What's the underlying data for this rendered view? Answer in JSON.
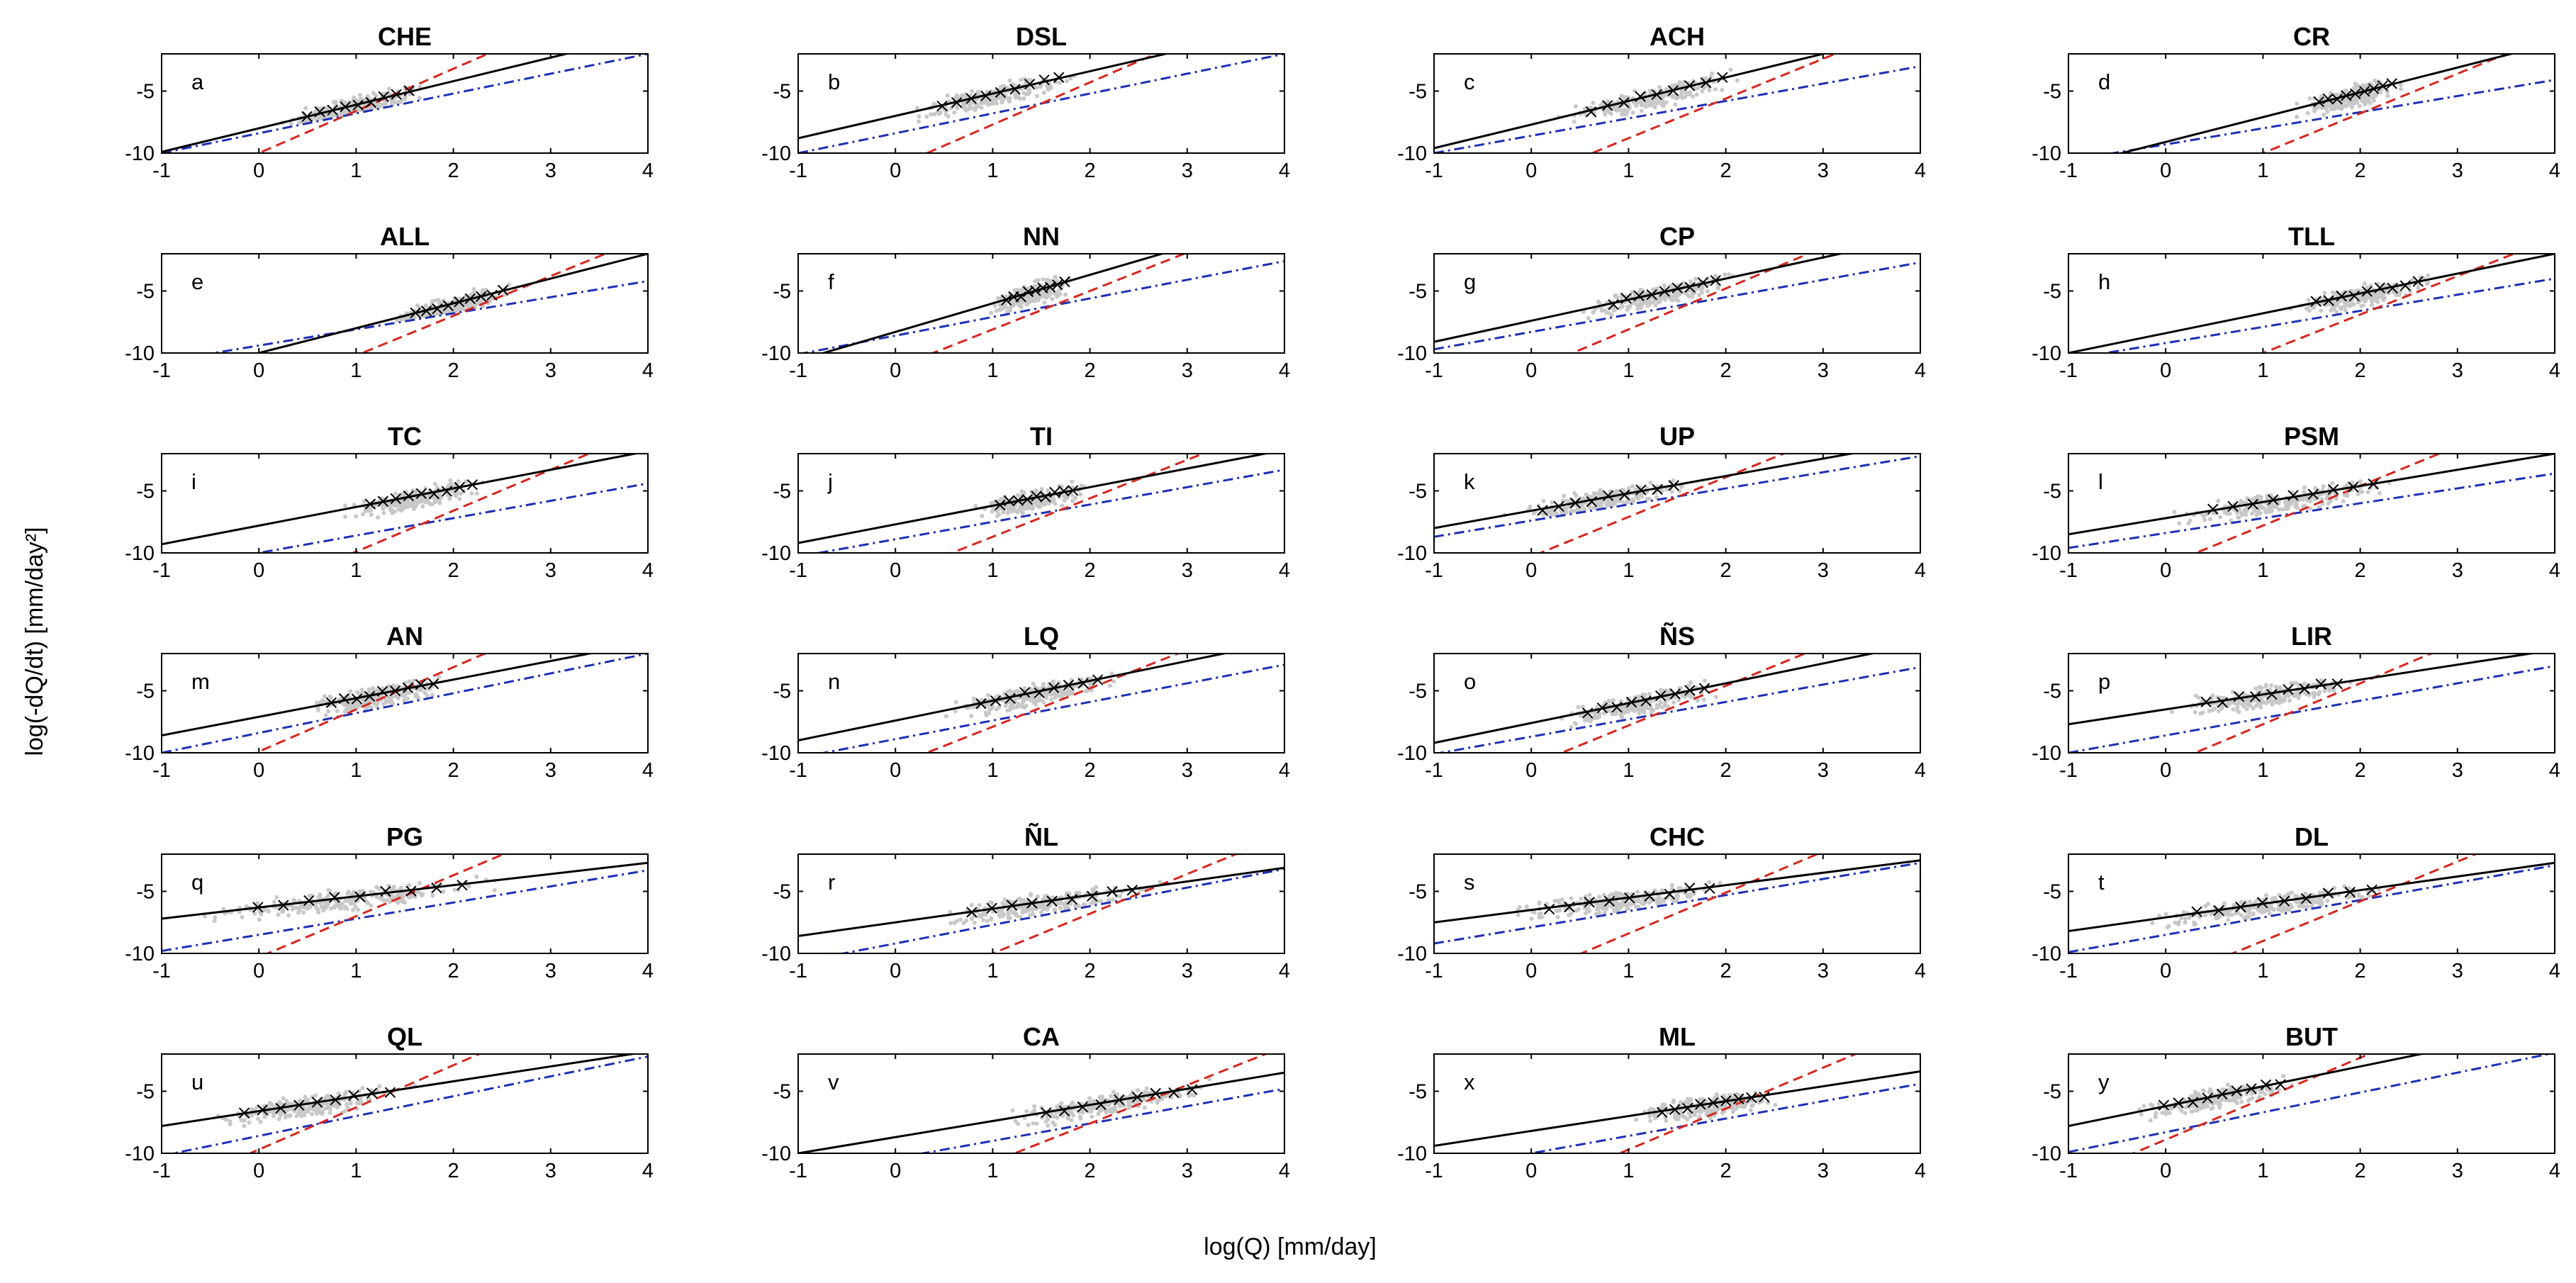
{
  "figure": {
    "ylabel": "log(-dQ/dt) [mm/day²]",
    "xlabel": "log(Q) [mm/day]"
  },
  "chart_data": {
    "type": "scatter",
    "grid": false,
    "xlim": [
      -1,
      4
    ],
    "ylim": [
      -10,
      -2
    ],
    "xticks": [
      "-1",
      "0",
      "1",
      "2",
      "3",
      "4"
    ],
    "yticks": [
      "-5",
      "-10"
    ],
    "series_styles": {
      "fit_line": {
        "name": "fitted recession (black solid)",
        "color": "#000000"
      },
      "early_line": {
        "name": "red dashed line",
        "color": "#d7261e"
      },
      "late_line": {
        "name": "blue dash-dot line",
        "color": "#1f2fb5"
      },
      "points": {
        "name": "recession points (grey)",
        "color": "#c8c8c8"
      },
      "bins": {
        "name": "binned means (x markers)",
        "color": "#000000"
      }
    },
    "panels": [
      {
        "title": "CHE",
        "label": "a",
        "cx": 0.95,
        "sx": 0.35,
        "fit": {
          "slope": 1.9,
          "intercept": -8.0
        },
        "red": {
          "slope": 3.4,
          "intercept": -10.0
        },
        "blue": {
          "slope": 1.6,
          "intercept": -8.4
        }
      },
      {
        "title": "DSL",
        "label": "b",
        "cx": 1.0,
        "sx": 0.4,
        "fit": {
          "slope": 1.8,
          "intercept": -7.0
        },
        "red": {
          "slope": 3.4,
          "intercept": -11.1
        },
        "blue": {
          "slope": 1.6,
          "intercept": -8.4
        }
      },
      {
        "title": "ACH",
        "label": "c",
        "cx": 1.2,
        "sx": 0.45,
        "fit": {
          "slope": 1.9,
          "intercept": -7.7
        },
        "red": {
          "slope": 3.2,
          "intercept": -12.0
        },
        "blue": {
          "slope": 1.4,
          "intercept": -8.6
        }
      },
      {
        "title": "CR",
        "label": "d",
        "cx": 1.9,
        "sx": 0.25,
        "fit": {
          "slope": 2.0,
          "intercept": -9.1
        },
        "red": {
          "slope": 3.2,
          "intercept": -13.2
        },
        "blue": {
          "slope": 1.3,
          "intercept": -9.3
        }
      },
      {
        "title": "ALL",
        "label": "e",
        "cx": 2.0,
        "sx": 0.3,
        "fit": {
          "slope": 2.0,
          "intercept": -10.0
        },
        "red": {
          "slope": 3.2,
          "intercept": -13.4
        },
        "blue": {
          "slope": 1.3,
          "intercept": -9.4
        }
      },
      {
        "title": "NN",
        "label": "f",
        "cx": 1.4,
        "sx": 0.2,
        "fit": {
          "slope": 2.3,
          "intercept": -8.3
        },
        "red": {
          "slope": 3.1,
          "intercept": -11.2
        },
        "blue": {
          "slope": 1.5,
          "intercept": -8.6
        }
      },
      {
        "title": "CP",
        "label": "g",
        "cx": 1.3,
        "sx": 0.35,
        "fit": {
          "slope": 1.7,
          "intercept": -7.4
        },
        "red": {
          "slope": 3.3,
          "intercept": -11.4
        },
        "blue": {
          "slope": 1.4,
          "intercept": -8.3
        }
      },
      {
        "title": "TLL",
        "label": "h",
        "cx": 2.0,
        "sx": 0.35,
        "fit": {
          "slope": 1.6,
          "intercept": -8.4
        },
        "red": {
          "slope": 3.1,
          "intercept": -13.1
        },
        "blue": {
          "slope": 1.3,
          "intercept": -9.2
        }
      },
      {
        "title": "TC",
        "label": "i",
        "cx": 1.6,
        "sx": 0.35,
        "fit": {
          "slope": 1.5,
          "intercept": -7.8
        },
        "red": {
          "slope": 3.3,
          "intercept": -13.2
        },
        "blue": {
          "slope": 1.4,
          "intercept": -10.0
        }
      },
      {
        "title": "TI",
        "label": "j",
        "cx": 1.4,
        "sx": 0.25,
        "fit": {
          "slope": 1.5,
          "intercept": -7.7
        },
        "red": {
          "slope": 3.1,
          "intercept": -11.8
        },
        "blue": {
          "slope": 1.4,
          "intercept": -8.9
        }
      },
      {
        "title": "UP",
        "label": "k",
        "cx": 0.7,
        "sx": 0.45,
        "fit": {
          "slope": 1.4,
          "intercept": -6.6
        },
        "red": {
          "slope": 3.2,
          "intercept": -10.3
        },
        "blue": {
          "slope": 1.3,
          "intercept": -7.4
        }
      },
      {
        "title": "PSM",
        "label": "l",
        "cx": 1.2,
        "sx": 0.55,
        "fit": {
          "slope": 1.3,
          "intercept": -7.2
        },
        "red": {
          "slope": 3.2,
          "intercept": -11.0
        },
        "blue": {
          "slope": 1.2,
          "intercept": -8.4
        }
      },
      {
        "title": "AN",
        "label": "m",
        "cx": 1.2,
        "sx": 0.35,
        "fit": {
          "slope": 1.5,
          "intercept": -7.1
        },
        "red": {
          "slope": 3.4,
          "intercept": -9.9
        },
        "blue": {
          "slope": 1.6,
          "intercept": -8.4
        }
      },
      {
        "title": "LQ",
        "label": "n",
        "cx": 1.4,
        "sx": 0.4,
        "fit": {
          "slope": 1.6,
          "intercept": -7.4
        },
        "red": {
          "slope": 3.1,
          "intercept": -11.0
        },
        "blue": {
          "slope": 1.5,
          "intercept": -8.9
        }
      },
      {
        "title": "ÑS",
        "label": "o",
        "cx": 1.1,
        "sx": 0.4,
        "fit": {
          "slope": 1.6,
          "intercept": -7.6
        },
        "red": {
          "slope": 3.2,
          "intercept": -11.0
        },
        "blue": {
          "slope": 1.4,
          "intercept": -8.7
        }
      },
      {
        "title": "LIR",
        "label": "p",
        "cx": 1.0,
        "sx": 0.45,
        "fit": {
          "slope": 1.2,
          "intercept": -6.5
        },
        "red": {
          "slope": 3.3,
          "intercept": -11.0
        },
        "blue": {
          "slope": 1.4,
          "intercept": -8.6
        }
      },
      {
        "title": "PG",
        "label": "q",
        "cx": 0.9,
        "sx": 0.7,
        "fit": {
          "slope": 0.9,
          "intercept": -6.3
        },
        "red": {
          "slope": 3.3,
          "intercept": -10.3
        },
        "blue": {
          "slope": 1.3,
          "intercept": -8.5
        }
      },
      {
        "title": "ÑL",
        "label": "r",
        "cx": 1.5,
        "sx": 0.55,
        "fit": {
          "slope": 1.1,
          "intercept": -7.5
        },
        "red": {
          "slope": 3.2,
          "intercept": -13.2
        },
        "blue": {
          "slope": 1.5,
          "intercept": -9.2
        }
      },
      {
        "title": "CHC",
        "label": "s",
        "cx": 0.9,
        "sx": 0.55,
        "fit": {
          "slope": 1.0,
          "intercept": -6.5
        },
        "red": {
          "slope": 3.3,
          "intercept": -11.7
        },
        "blue": {
          "slope": 1.3,
          "intercept": -7.9
        }
      },
      {
        "title": "DL",
        "label": "t",
        "cx": 1.1,
        "sx": 0.6,
        "fit": {
          "slope": 1.1,
          "intercept": -7.1
        },
        "red": {
          "slope": 3.2,
          "intercept": -12.2
        },
        "blue": {
          "slope": 1.4,
          "intercept": -8.5
        }
      },
      {
        "title": "QL",
        "label": "u",
        "cx": 0.5,
        "sx": 0.5,
        "fit": {
          "slope": 1.2,
          "intercept": -6.6
        },
        "red": {
          "slope": 3.4,
          "intercept": -9.7
        },
        "blue": {
          "slope": 1.6,
          "intercept": -8.6
        }
      },
      {
        "title": "CA",
        "label": "v",
        "cx": 2.2,
        "sx": 0.5,
        "fit": {
          "slope": 1.3,
          "intercept": -8.7
        },
        "red": {
          "slope": 3.1,
          "intercept": -13.8
        },
        "blue": {
          "slope": 1.4,
          "intercept": -10.4
        }
      },
      {
        "title": "ML",
        "label": "x",
        "cx": 1.8,
        "sx": 0.35,
        "fit": {
          "slope": 1.2,
          "intercept": -8.2
        },
        "red": {
          "slope": 3.3,
          "intercept": -13.0
        },
        "blue": {
          "slope": 1.4,
          "intercept": -10.0
        }
      },
      {
        "title": "BUT",
        "label": "y",
        "cx": 0.5,
        "sx": 0.4,
        "fit": {
          "slope": 1.6,
          "intercept": -6.2
        },
        "red": {
          "slope": 3.3,
          "intercept": -8.9
        },
        "blue": {
          "slope": 1.6,
          "intercept": -8.3
        }
      }
    ]
  }
}
